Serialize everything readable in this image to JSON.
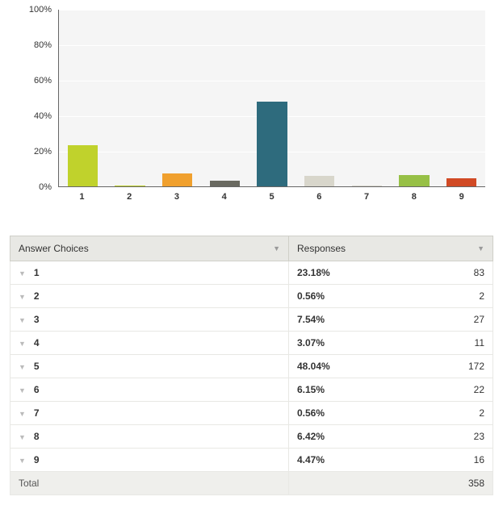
{
  "chart": {
    "type": "bar",
    "y_axis": {
      "min": 0,
      "max": 100,
      "step": 20,
      "ticks": [
        0,
        20,
        40,
        60,
        80,
        100
      ],
      "format_suffix": "%"
    },
    "categories": [
      "1",
      "2",
      "3",
      "4",
      "5",
      "6",
      "7",
      "8",
      "9"
    ],
    "values": [
      23.18,
      0.56,
      7.54,
      3.07,
      48.04,
      6.15,
      0.56,
      6.42,
      4.47
    ],
    "bar_colors": [
      "#c0d22c",
      "#c0d22c",
      "#f0a02e",
      "#6a6a61",
      "#2e6b7d",
      "#d8d6cb",
      "#d8d6cb",
      "#97c046",
      "#d14a25"
    ],
    "plot_bg": "#f5f5f5",
    "grid_color": "#ffffff",
    "axis_color": "#666666",
    "label_fontsize": 11
  },
  "table": {
    "header_choices": "Answer Choices",
    "header_responses": "Responses",
    "rows": [
      {
        "label": "1",
        "pct": "23.18%",
        "count": "83"
      },
      {
        "label": "2",
        "pct": "0.56%",
        "count": "2"
      },
      {
        "label": "3",
        "pct": "7.54%",
        "count": "27"
      },
      {
        "label": "4",
        "pct": "3.07%",
        "count": "11"
      },
      {
        "label": "5",
        "pct": "48.04%",
        "count": "172"
      },
      {
        "label": "6",
        "pct": "6.15%",
        "count": "22"
      },
      {
        "label": "7",
        "pct": "0.56%",
        "count": "2"
      },
      {
        "label": "8",
        "pct": "6.42%",
        "count": "23"
      },
      {
        "label": "9",
        "pct": "4.47%",
        "count": "16"
      }
    ],
    "total_label": "Total",
    "total_count": "358"
  }
}
